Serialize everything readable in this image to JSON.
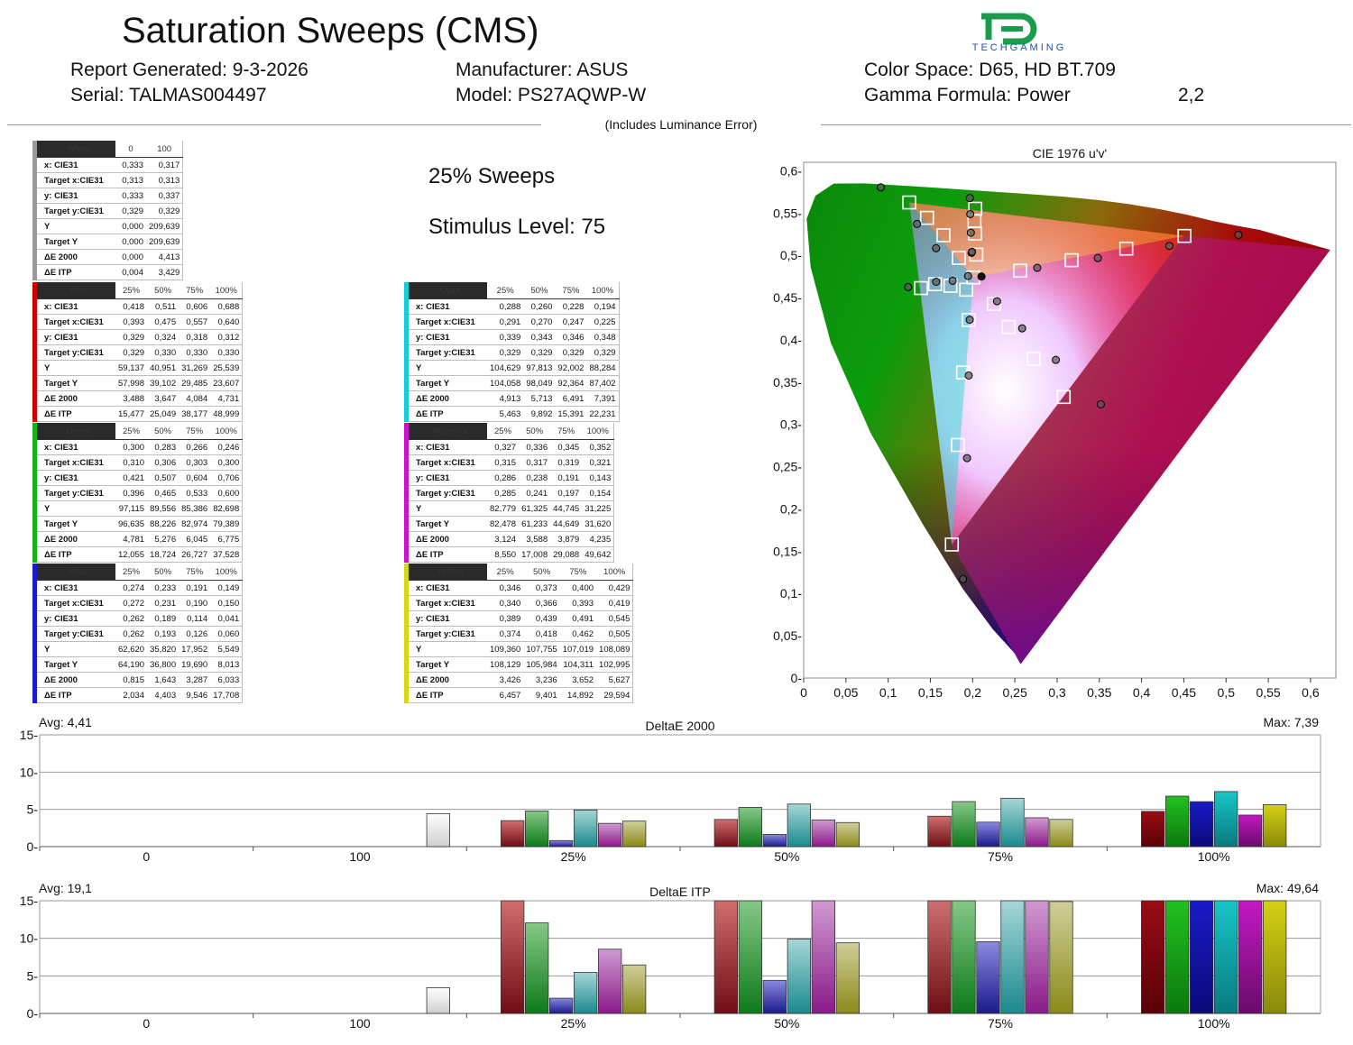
{
  "header": {
    "title": "Saturation Sweeps (CMS)",
    "logo_text": "TECHGAMING",
    "report_generated": "Report Generated: 9-3-2026",
    "serial": "Serial: TALMAS004497",
    "manufacturer": "Manufacturer: ASUS",
    "model": "Model: PS27AQWP-W",
    "color_space": "Color Space: D65, HD BT.709",
    "gamma_formula": "Gamma Formula: Power",
    "gamma_value": "2,2",
    "includes": "(Includes Luminance Error)"
  },
  "sweep": {
    "title": "25% Sweeps",
    "stimulus": "Stimulus Level: 75"
  },
  "tables": {
    "white": {
      "name": "White",
      "accent": "#9a9a9a",
      "cols": [
        "0",
        "100"
      ],
      "rows": [
        {
          "label": "x: CIE31",
          "values": [
            "0,333",
            "0,317"
          ]
        },
        {
          "label": "Target x:CIE31",
          "values": [
            "0,313",
            "0,313"
          ]
        },
        {
          "label": "y: CIE31",
          "values": [
            "0,333",
            "0,337"
          ]
        },
        {
          "label": "Target y:CIE31",
          "values": [
            "0,329",
            "0,329"
          ]
        },
        {
          "label": "Y",
          "values": [
            "0,000",
            "209,639"
          ]
        },
        {
          "label": "Target Y",
          "values": [
            "0,000",
            "209,639"
          ]
        },
        {
          "label": "ΔE 2000",
          "values": [
            "0,000",
            "4,413"
          ]
        },
        {
          "label": "ΔE ITP",
          "values": [
            "0,004",
            "3,429"
          ]
        }
      ]
    },
    "red": {
      "name": "Red",
      "accent": "#d00000",
      "cols": [
        "25%",
        "50%",
        "75%",
        "100%"
      ],
      "rows": [
        {
          "label": "x: CIE31",
          "values": [
            "0,418",
            "0,511",
            "0,606",
            "0,688"
          ]
        },
        {
          "label": "Target x:CIE31",
          "values": [
            "0,393",
            "0,475",
            "0,557",
            "0,640"
          ]
        },
        {
          "label": "y: CIE31",
          "values": [
            "0,329",
            "0,324",
            "0,318",
            "0,312"
          ]
        },
        {
          "label": "Target y:CIE31",
          "values": [
            "0,329",
            "0,330",
            "0,330",
            "0,330"
          ]
        },
        {
          "label": "Y",
          "values": [
            "59,137",
            "40,951",
            "31,269",
            "25,539"
          ]
        },
        {
          "label": "Target Y",
          "values": [
            "57,998",
            "39,102",
            "29,485",
            "23,607"
          ]
        },
        {
          "label": "ΔE 2000",
          "values": [
            "3,488",
            "3,647",
            "4,084",
            "4,731"
          ]
        },
        {
          "label": "ΔE ITP",
          "values": [
            "15,477",
            "25,049",
            "38,177",
            "48,999"
          ]
        }
      ]
    },
    "green": {
      "name": "Green",
      "accent": "#16b316",
      "cols": [
        "25%",
        "50%",
        "75%",
        "100%"
      ],
      "rows": [
        {
          "label": "x: CIE31",
          "values": [
            "0,300",
            "0,283",
            "0,266",
            "0,246"
          ]
        },
        {
          "label": "Target x:CIE31",
          "values": [
            "0,310",
            "0,306",
            "0,303",
            "0,300"
          ]
        },
        {
          "label": "y: CIE31",
          "values": [
            "0,421",
            "0,507",
            "0,604",
            "0,706"
          ]
        },
        {
          "label": "Target y:CIE31",
          "values": [
            "0,396",
            "0,465",
            "0,533",
            "0,600"
          ]
        },
        {
          "label": "Y",
          "values": [
            "97,115",
            "89,556",
            "85,386",
            "82,698"
          ]
        },
        {
          "label": "Target Y",
          "values": [
            "96,635",
            "88,226",
            "82,974",
            "79,389"
          ]
        },
        {
          "label": "ΔE 2000",
          "values": [
            "4,781",
            "5,276",
            "6,045",
            "6,775"
          ]
        },
        {
          "label": "ΔE ITP",
          "values": [
            "12,055",
            "18,724",
            "26,727",
            "37,528"
          ]
        }
      ]
    },
    "blue": {
      "name": "Blue",
      "accent": "#1a1ad0",
      "cols": [
        "25%",
        "50%",
        "75%",
        "100%"
      ],
      "rows": [
        {
          "label": "x: CIE31",
          "values": [
            "0,274",
            "0,233",
            "0,191",
            "0,149"
          ]
        },
        {
          "label": "Target x:CIE31",
          "values": [
            "0,272",
            "0,231",
            "0,190",
            "0,150"
          ]
        },
        {
          "label": "y: CIE31",
          "values": [
            "0,262",
            "0,189",
            "0,114",
            "0,041"
          ]
        },
        {
          "label": "Target y:CIE31",
          "values": [
            "0,262",
            "0,193",
            "0,126",
            "0,060"
          ]
        },
        {
          "label": "Y",
          "values": [
            "62,620",
            "35,820",
            "17,952",
            "5,549"
          ]
        },
        {
          "label": "Target Y",
          "values": [
            "64,190",
            "36,800",
            "19,690",
            "8,013"
          ]
        },
        {
          "label": "ΔE 2000",
          "values": [
            "0,815",
            "1,643",
            "3,287",
            "6,033"
          ]
        },
        {
          "label": "ΔE ITP",
          "values": [
            "2,034",
            "4,403",
            "9,546",
            "17,708"
          ]
        }
      ]
    },
    "cyan": {
      "name": "Cyan",
      "accent": "#10d0d8",
      "cols": [
        "25%",
        "50%",
        "75%",
        "100%"
      ],
      "rows": [
        {
          "label": "x: CIE31",
          "values": [
            "0,288",
            "0,260",
            "0,228",
            "0,194"
          ]
        },
        {
          "label": "Target x:CIE31",
          "values": [
            "0,291",
            "0,270",
            "0,247",
            "0,225"
          ]
        },
        {
          "label": "y: CIE31",
          "values": [
            "0,339",
            "0,343",
            "0,346",
            "0,348"
          ]
        },
        {
          "label": "Target y:CIE31",
          "values": [
            "0,329",
            "0,329",
            "0,329",
            "0,329"
          ]
        },
        {
          "label": "Y",
          "values": [
            "104,629",
            "97,813",
            "92,002",
            "88,284"
          ]
        },
        {
          "label": "Target Y",
          "values": [
            "104,058",
            "98,049",
            "92,364",
            "87,402"
          ]
        },
        {
          "label": "ΔE 2000",
          "values": [
            "4,913",
            "5,713",
            "6,491",
            "7,391"
          ]
        },
        {
          "label": "ΔE ITP",
          "values": [
            "5,463",
            "9,892",
            "15,391",
            "22,231"
          ]
        }
      ]
    },
    "magenta": {
      "name": "Magenta",
      "accent": "#d010d0",
      "cols": [
        "25%",
        "50%",
        "75%",
        "100%"
      ],
      "rows": [
        {
          "label": "x: CIE31",
          "values": [
            "0,327",
            "0,336",
            "0,345",
            "0,352"
          ]
        },
        {
          "label": "Target x:CIE31",
          "values": [
            "0,315",
            "0,317",
            "0,319",
            "0,321"
          ]
        },
        {
          "label": "y: CIE31",
          "values": [
            "0,286",
            "0,238",
            "0,191",
            "0,143"
          ]
        },
        {
          "label": "Target y:CIE31",
          "values": [
            "0,285",
            "0,241",
            "0,197",
            "0,154"
          ]
        },
        {
          "label": "Y",
          "values": [
            "82,779",
            "61,325",
            "44,745",
            "31,225"
          ]
        },
        {
          "label": "Target Y",
          "values": [
            "82,478",
            "61,233",
            "44,649",
            "31,620"
          ]
        },
        {
          "label": "ΔE 2000",
          "values": [
            "3,124",
            "3,588",
            "3,879",
            "4,235"
          ]
        },
        {
          "label": "ΔE ITP",
          "values": [
            "8,550",
            "17,008",
            "29,088",
            "49,642"
          ]
        }
      ]
    },
    "yellow": {
      "name": "Yellow",
      "accent": "#d8d810",
      "cols": [
        "25%",
        "50%",
        "75%",
        "100%"
      ],
      "rows": [
        {
          "label": "x: CIE31",
          "values": [
            "0,346",
            "0,373",
            "0,400",
            "0,429"
          ]
        },
        {
          "label": "Target x:CIE31",
          "values": [
            "0,340",
            "0,366",
            "0,393",
            "0,419"
          ]
        },
        {
          "label": "y: CIE31",
          "values": [
            "0,389",
            "0,439",
            "0,491",
            "0,545"
          ]
        },
        {
          "label": "Target y:CIE31",
          "values": [
            "0,374",
            "0,418",
            "0,462",
            "0,505"
          ]
        },
        {
          "label": "Y",
          "values": [
            "109,360",
            "107,755",
            "107,019",
            "108,089"
          ]
        },
        {
          "label": "Target Y",
          "values": [
            "108,129",
            "105,984",
            "104,311",
            "102,995"
          ]
        },
        {
          "label": "ΔE 2000",
          "values": [
            "3,426",
            "3,236",
            "3,652",
            "5,627"
          ]
        },
        {
          "label": "ΔE ITP",
          "values": [
            "6,457",
            "9,401",
            "14,892",
            "29,594"
          ]
        }
      ]
    }
  },
  "chart_data": [
    {
      "type": "scatter",
      "title": "CIE 1976 u'v'",
      "xlim": [
        0,
        0.63
      ],
      "ylim": [
        0,
        0.61
      ],
      "x_ticks": [
        "0",
        "0,05",
        "0,1",
        "0,15",
        "0,2",
        "0,25",
        "0,3",
        "0,35",
        "0,4",
        "0,45",
        "0,5",
        "0,55",
        "0,6"
      ],
      "y_ticks": [
        "0-",
        "0,05-",
        "0,1-",
        "0,15-",
        "0,2-",
        "0,25-",
        "0,3-",
        "0,35-",
        "0,4-",
        "0,45-",
        "0,5-",
        "0,55-",
        "0,6-"
      ],
      "gamut_triangle": [
        [
          0.4507,
          0.5229
        ],
        [
          0.125,
          0.5625
        ],
        [
          0.1754,
          0.1579
        ]
      ],
      "targets": [
        [
          0.2009,
          0.4738
        ],
        [
          0.2563,
          0.4818
        ],
        [
          0.3171,
          0.4942
        ],
        [
          0.3819,
          0.5079
        ],
        [
          0.4507,
          0.5229
        ],
        [
          0.1837,
          0.4969
        ],
        [
          0.1655,
          0.5237
        ],
        [
          0.146,
          0.5443
        ],
        [
          0.125,
          0.5625
        ],
        [
          0.1954,
          0.4236
        ],
        [
          0.1887,
          0.3613
        ],
        [
          0.1825,
          0.2757
        ],
        [
          0.1754,
          0.1579
        ],
        [
          0.1924,
          0.4593
        ],
        [
          0.1737,
          0.4639
        ],
        [
          0.1556,
          0.4658
        ],
        [
          0.1389,
          0.4612
        ],
        [
          0.2251,
          0.4425
        ],
        [
          0.2426,
          0.4152
        ],
        [
          0.2721,
          0.3774
        ],
        [
          0.3078,
          0.3324
        ],
        [
          0.2044,
          0.5008
        ],
        [
          0.2028,
          0.5258
        ],
        [
          0.2022,
          0.5407
        ],
        [
          0.2031,
          0.5551
        ]
      ],
      "measured": [
        [
          0.2105,
          0.4749
        ],
        [
          0.2765,
          0.4852
        ],
        [
          0.3482,
          0.4968
        ],
        [
          0.4329,
          0.5111
        ],
        [
          0.5146,
          0.5242
        ],
        [
          0.1987,
          0.5029
        ],
        [
          0.1567,
          0.5084
        ],
        [
          0.1342,
          0.5371
        ],
        [
          0.0913,
          0.5804
        ],
        [
          0.1965,
          0.4238
        ],
        [
          0.1954,
          0.3578
        ],
        [
          0.1934,
          0.2601
        ],
        [
          0.1886,
          0.1169
        ],
        [
          0.1946,
          0.4755
        ],
        [
          0.1763,
          0.4698
        ],
        [
          0.1568,
          0.4687
        ],
        [
          0.1237,
          0.4624
        ],
        [
          0.2289,
          0.4457
        ],
        [
          0.2586,
          0.4136
        ],
        [
          0.2985,
          0.3763
        ],
        [
          0.3518,
          0.3238
        ],
        [
          0.1993,
          0.5042
        ],
        [
          0.1979,
          0.5267
        ],
        [
          0.1972,
          0.5487
        ],
        [
          0.1967,
          0.5677
        ]
      ]
    },
    {
      "type": "bar",
      "title": "DeltaE 2000",
      "avg_label": "Avg: 4,41",
      "max_label": "Max: 7,39",
      "ylim": [
        0,
        15
      ],
      "y_ticks": [
        "0-",
        "5-",
        "10-",
        "15-"
      ],
      "categories": [
        "0",
        "100",
        "25%",
        "50%",
        "75%",
        "100%"
      ],
      "groups": [
        [
          {
            "color": "white",
            "value": 0.0
          }
        ],
        [
          {
            "color": "white",
            "value": 4.413
          }
        ],
        [
          {
            "color": "red",
            "value": 3.488
          },
          {
            "color": "green",
            "value": 4.781
          },
          {
            "color": "blue",
            "value": 0.815
          },
          {
            "color": "cyan",
            "value": 4.913
          },
          {
            "color": "magenta",
            "value": 3.124
          },
          {
            "color": "yellow",
            "value": 3.426
          }
        ],
        [
          {
            "color": "red",
            "value": 3.647
          },
          {
            "color": "green",
            "value": 5.276
          },
          {
            "color": "blue",
            "value": 1.643
          },
          {
            "color": "cyan",
            "value": 5.713
          },
          {
            "color": "magenta",
            "value": 3.588
          },
          {
            "color": "yellow",
            "value": 3.236
          }
        ],
        [
          {
            "color": "red",
            "value": 4.084
          },
          {
            "color": "green",
            "value": 6.045
          },
          {
            "color": "blue",
            "value": 3.287
          },
          {
            "color": "cyan",
            "value": 6.491
          },
          {
            "color": "magenta",
            "value": 3.879
          },
          {
            "color": "yellow",
            "value": 3.652
          }
        ],
        [
          {
            "color": "red",
            "value": 4.731
          },
          {
            "color": "green",
            "value": 6.775
          },
          {
            "color": "blue",
            "value": 6.033
          },
          {
            "color": "cyan",
            "value": 7.391
          },
          {
            "color": "magenta",
            "value": 4.235
          },
          {
            "color": "yellow",
            "value": 5.627
          }
        ]
      ]
    },
    {
      "type": "bar",
      "title": "DeltaE ITP",
      "avg_label": "Avg: 19,1",
      "max_label": "Max: 49,64",
      "ylim": [
        0,
        15
      ],
      "y_ticks": [
        "0-",
        "5-",
        "10-",
        "15-"
      ],
      "categories": [
        "0",
        "100",
        "25%",
        "50%",
        "75%",
        "100%"
      ],
      "groups": [
        [
          {
            "color": "white",
            "value": 0.004
          }
        ],
        [
          {
            "color": "white",
            "value": 3.429
          }
        ],
        [
          {
            "color": "red",
            "value": 15.477
          },
          {
            "color": "green",
            "value": 12.055
          },
          {
            "color": "blue",
            "value": 2.034
          },
          {
            "color": "cyan",
            "value": 5.463
          },
          {
            "color": "magenta",
            "value": 8.55
          },
          {
            "color": "yellow",
            "value": 6.457
          }
        ],
        [
          {
            "color": "red",
            "value": 25.049
          },
          {
            "color": "green",
            "value": 18.724
          },
          {
            "color": "blue",
            "value": 4.403
          },
          {
            "color": "cyan",
            "value": 9.892
          },
          {
            "color": "magenta",
            "value": 17.008
          },
          {
            "color": "yellow",
            "value": 9.401
          }
        ],
        [
          {
            "color": "red",
            "value": 38.177
          },
          {
            "color": "green",
            "value": 26.727
          },
          {
            "color": "blue",
            "value": 9.546
          },
          {
            "color": "cyan",
            "value": 15.391
          },
          {
            "color": "magenta",
            "value": 29.088
          },
          {
            "color": "yellow",
            "value": 14.892
          }
        ],
        [
          {
            "color": "red",
            "value": 48.999
          },
          {
            "color": "green",
            "value": 37.528
          },
          {
            "color": "blue",
            "value": 17.708
          },
          {
            "color": "cyan",
            "value": 22.231
          },
          {
            "color": "magenta",
            "value": 49.642
          },
          {
            "color": "yellow",
            "value": 29.594
          }
        ]
      ]
    }
  ]
}
